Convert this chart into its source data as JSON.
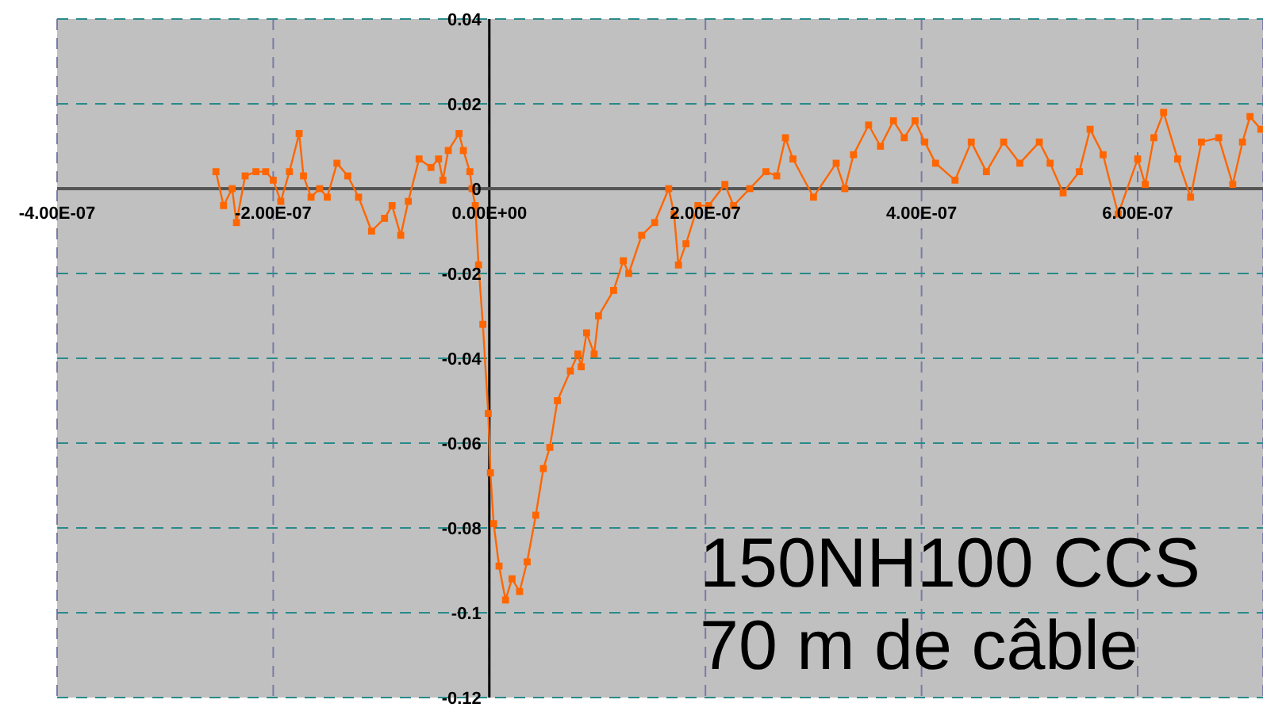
{
  "chart_data": {
    "type": "line",
    "x": [
      -2.53e-07,
      -2.46e-07,
      -2.38e-07,
      -2.34e-07,
      -2.26e-07,
      -2.16e-07,
      -2.07e-07,
      -2e-07,
      -1.93e-07,
      -1.85e-07,
      -1.76e-07,
      -1.72e-07,
      -1.65e-07,
      -1.57e-07,
      -1.5e-07,
      -1.41e-07,
      -1.31e-07,
      -1.21e-07,
      -1.09e-07,
      -9.7e-08,
      -9e-08,
      -8.2e-08,
      -7.5e-08,
      -6.5e-08,
      -5.4e-08,
      -4.7e-08,
      -4.3e-08,
      -3.8e-08,
      -2.8e-08,
      -2.4e-08,
      -1.8e-08,
      -1.6e-08,
      -1.3e-08,
      -1e-08,
      -6e-09,
      -1e-09,
      1e-09,
      4e-09,
      9e-09,
      1.5e-08,
      2.1e-08,
      2.8e-08,
      3.5e-08,
      4.3e-08,
      5e-08,
      5.6e-08,
      6.3e-08,
      7.5e-08,
      8.2e-08,
      8.5e-08,
      9e-08,
      9.7e-08,
      1.01e-07,
      1.15e-07,
      1.24e-07,
      1.29e-07,
      1.41e-07,
      1.53e-07,
      1.66e-07,
      1.71e-07,
      1.75e-07,
      1.82e-07,
      1.93e-07,
      2.03e-07,
      2.18e-07,
      2.26e-07,
      2.41e-07,
      2.56e-07,
      2.66e-07,
      2.74e-07,
      2.81e-07,
      3e-07,
      3.21e-07,
      3.29e-07,
      3.37e-07,
      3.51e-07,
      3.62e-07,
      3.74e-07,
      3.84e-07,
      3.94e-07,
      4.03e-07,
      4.13e-07,
      4.31e-07,
      4.46e-07,
      4.6e-07,
      4.76e-07,
      4.91e-07,
      5.09e-07,
      5.19e-07,
      5.31e-07,
      5.46e-07,
      5.56e-07,
      5.68e-07,
      5.82e-07,
      6e-07,
      6.07e-07,
      6.15e-07,
      6.24e-07,
      6.37e-07,
      6.49e-07,
      6.59e-07,
      6.75e-07,
      6.88e-07,
      6.97e-07,
      7.04e-07,
      7.14e-07
    ],
    "series": [
      {
        "color": "#ff6600",
        "values": [
          0.004,
          -0.004,
          0,
          -0.008,
          0.003,
          0.004,
          0.004,
          0.002,
          -0.003,
          0.004,
          0.013,
          0.003,
          -0.002,
          0,
          -0.002,
          0.006,
          0.003,
          -0.002,
          -0.01,
          -0.007,
          -0.004,
          -0.011,
          -0.003,
          0.007,
          0.005,
          0.007,
          0.002,
          0.009,
          0.013,
          0.009,
          0.004,
          0,
          -0.004,
          -0.018,
          -0.032,
          -0.053,
          -0.067,
          -0.079,
          -0.089,
          -0.097,
          -0.092,
          -0.095,
          -0.088,
          -0.077,
          -0.066,
          -0.061,
          -0.05,
          -0.043,
          -0.039,
          -0.042,
          -0.034,
          -0.039,
          -0.03,
          -0.024,
          -0.017,
          -0.02,
          -0.011,
          -0.008,
          0,
          -0.006,
          -0.018,
          -0.013,
          -0.004,
          -0.004,
          0.001,
          -0.004,
          0,
          0.004,
          0.003,
          0.012,
          0.007,
          -0.002,
          0.006,
          0,
          0.008,
          0.015,
          0.01,
          0.016,
          0.012,
          0.016,
          0.011,
          0.006,
          0.002,
          0.011,
          0.004,
          0.011,
          0.006,
          0.011,
          0.006,
          -0.001,
          0.004,
          0.014,
          0.008,
          -0.006,
          0.007,
          0.001,
          0.012,
          0.018,
          0.007,
          -0.002,
          0.011,
          0.012,
          0.001,
          0.011,
          0.017,
          0.014
        ]
      }
    ],
    "xlim": [
      -4e-07,
      7.16e-07
    ],
    "xticks": [
      {
        "value": -4e-07,
        "label": "-4.00E-07"
      },
      {
        "value": -2e-07,
        "label": "-2.00E-07"
      },
      {
        "value": 0,
        "label": "0.00E+00"
      },
      {
        "value": 2e-07,
        "label": "2.00E-07"
      },
      {
        "value": 4e-07,
        "label": "4.00E-07"
      },
      {
        "value": 6e-07,
        "label": "6.00E-07"
      }
    ],
    "ylim": [
      -0.12,
      0.04
    ],
    "yticks": [
      0.04,
      0.02,
      0,
      -0.02,
      -0.04,
      -0.06,
      -0.08,
      -0.1,
      -0.12
    ],
    "grid": true,
    "marker": "square",
    "line_style": "solid",
    "annotations": [
      "150NH100 CCS",
      "70 m de câble"
    ]
  }
}
